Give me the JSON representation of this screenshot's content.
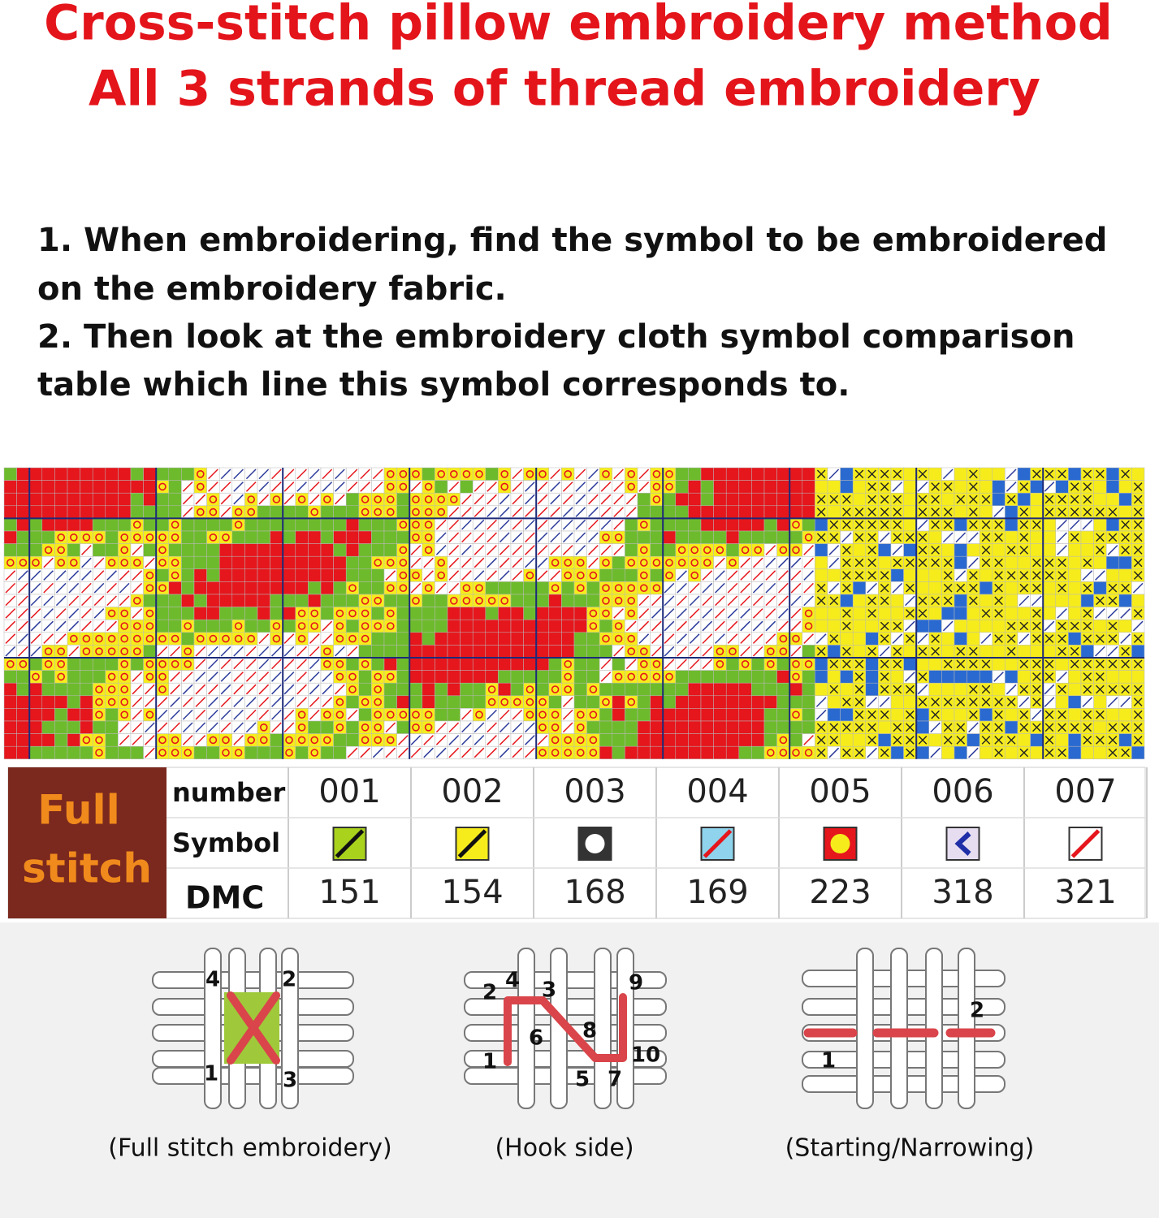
{
  "header": {
    "title_lines": [
      "Cross-stitch pillow embroidery method",
      "All 3 strands of thread embroidery"
    ]
  },
  "instructions": [
    "1. When embroidering, find the symbol to be embroidered",
    "on the embroidery fabric.",
    "2. Then look at the embroidery cloth symbol comparison",
    "table which line this symbol corresponds to."
  ],
  "table": {
    "heading_lines": [
      "Full",
      "stitch"
    ],
    "row_labels": [
      "number",
      "Symbol",
      "DMC"
    ],
    "numbers": [
      "001",
      "002",
      "003",
      "004",
      "005",
      "006",
      "007"
    ],
    "dmc": [
      151,
      154,
      168,
      169,
      223,
      318,
      321
    ]
  },
  "diagrams": [
    {
      "labels": [
        "4",
        "2",
        "1",
        "3"
      ],
      "caption": "(Full stitch embroidery)"
    },
    {
      "labels": [
        "2",
        "4",
        "3",
        "9",
        "8",
        "6",
        "1",
        "5",
        "7",
        "10"
      ],
      "caption": "(Hook side)"
    },
    {
      "labels": [
        "2",
        "1"
      ],
      "caption": "(Starting/Narrowing)"
    }
  ]
}
